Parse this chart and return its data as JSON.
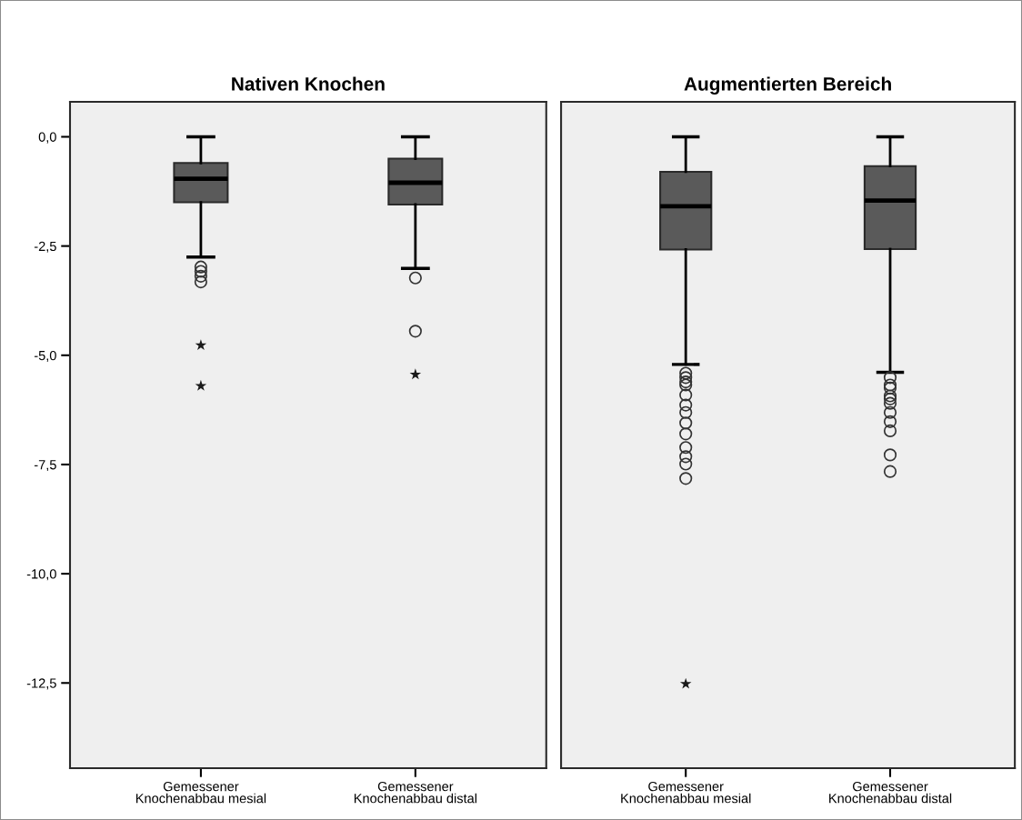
{
  "chart_data": [
    {
      "type": "box",
      "title": "Nativen Knochen",
      "categories": [
        "Gemessener\nKnochenabbau mesial",
        "Gemessener\nKnochenabbau distal"
      ],
      "ylim": [
        -14.45,
        0.8
      ],
      "yticks": [
        {
          "value": 0,
          "label": "0,0"
        },
        {
          "value": -2.5,
          "label": "-2,5"
        },
        {
          "value": -5,
          "label": "-5,0"
        },
        {
          "value": -7.5,
          "label": "-7,5"
        },
        {
          "value": -10,
          "label": "-10,0"
        },
        {
          "value": -12.5,
          "label": "-12,5"
        }
      ],
      "series": [
        {
          "color": "#5a5a5a",
          "marker": "circle",
          "boxes": [
            {
              "low": -2.75,
              "q1": -1.5,
              "median": -0.96,
              "q3": -0.6,
              "high": 0,
              "outliers": [
                -2.98,
                -3.08,
                -3.19,
                -3.32
              ]
            },
            {
              "low": -3.01,
              "q1": -1.55,
              "median": -1.05,
              "q3": -0.5,
              "high": 0,
              "outliers": [
                -3.23,
                -4.45
              ]
            }
          ]
        },
        {
          "type": "scatter",
          "color": "#1a1a1a",
          "marker": "star",
          "x": [
            "Gemessener\nKnochenabbau mesial",
            "Gemessener\nKnochenabbau mesial",
            "Gemessener\nKnochenabbau distal"
          ],
          "values": [
            -4.77,
            -5.7,
            -5.44
          ]
        }
      ]
    },
    {
      "type": "box",
      "title": "Augmentierten Bereich",
      "categories": [
        "Gemessener\nKnochenabbau mesial",
        "Gemessener\nKnochenabbau distal"
      ],
      "ylim": [
        -14.45,
        0.8
      ],
      "tick_labels": "x",
      "series": [
        {
          "color": "#5a5a5a",
          "marker": "circle",
          "boxes": [
            {
              "low": -5.21,
              "q1": -2.58,
              "median": -1.59,
              "q3": -0.8,
              "high": 0,
              "outliers": [
                -5.41,
                -5.51,
                -5.61,
                -5.68,
                -5.91,
                -6.14,
                -6.31,
                -6.55,
                -6.8,
                -7.11,
                -7.32,
                -7.49,
                -7.82
              ]
            },
            {
              "low": -5.39,
              "q1": -2.57,
              "median": -1.46,
              "q3": -0.67,
              "high": 0,
              "outliers": [
                -5.51,
                -5.68,
                -5.75,
                -5.93,
                -6.0,
                -6.1,
                -6.31,
                -6.52,
                -6.73,
                -7.28,
                -7.66
              ]
            }
          ]
        },
        {
          "type": "scatter",
          "color": "#1a1a1a",
          "marker": "star",
          "x": [
            "Gemessener\nKnochenabbau mesial"
          ],
          "values": [
            -12.52
          ]
        }
      ]
    }
  ]
}
